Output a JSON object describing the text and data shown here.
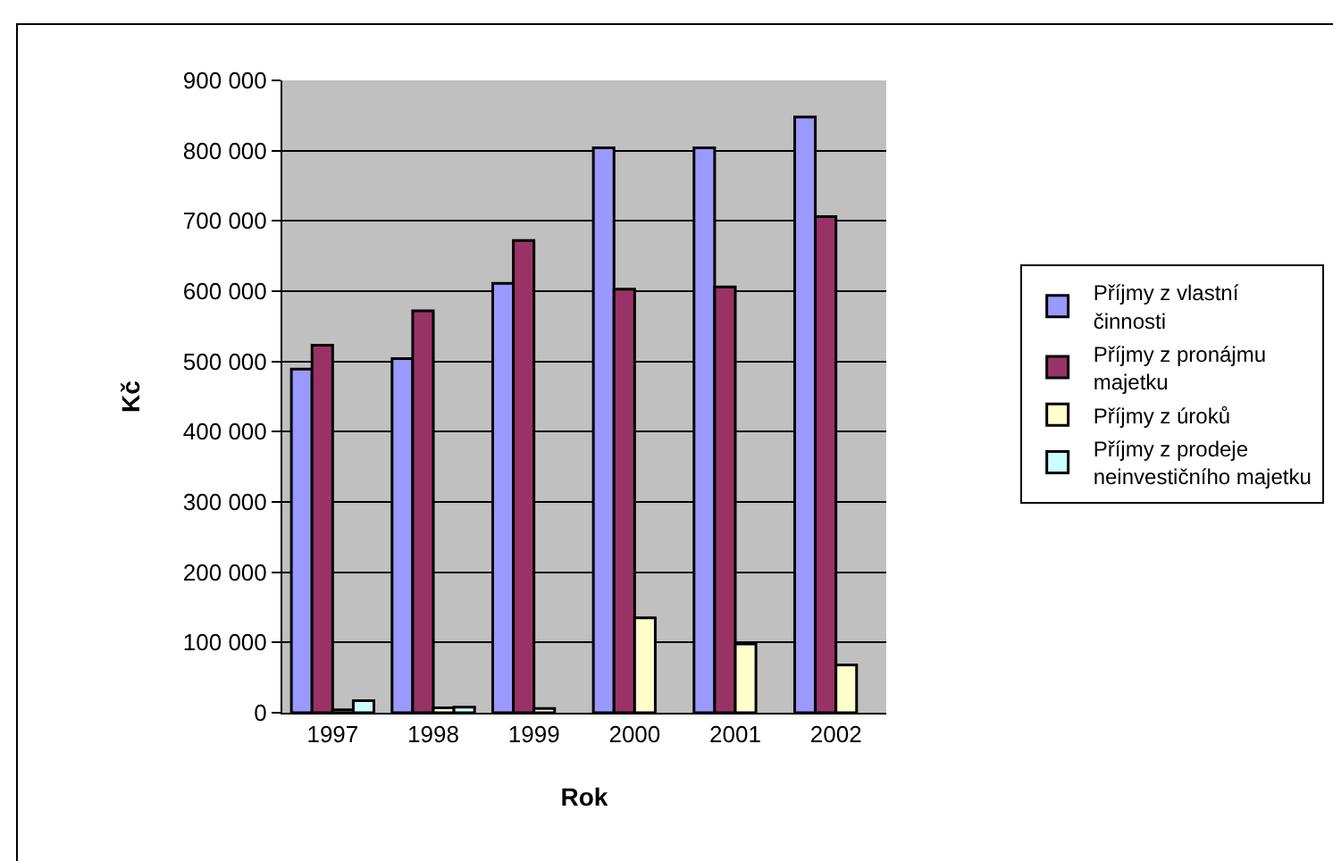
{
  "chart_data": {
    "type": "bar",
    "xlabel": "Rok",
    "ylabel": "Kč",
    "categories": [
      "1997",
      "1998",
      "1999",
      "2000",
      "2001",
      "2002"
    ],
    "series": [
      {
        "name": "Příjmy z vlastní činnosti",
        "color": "#9999ff",
        "values": [
          489000,
          504000,
          611000,
          804000,
          804000,
          848000
        ]
      },
      {
        "name": "Příjmy z pronájmu majetku",
        "color": "#993366",
        "values": [
          523000,
          572000,
          672000,
          603000,
          606000,
          706000
        ]
      },
      {
        "name": "Příjmy z úroků",
        "color": "#ffffcc",
        "values": [
          4000,
          7000,
          6000,
          135000,
          98000,
          68000
        ]
      },
      {
        "name": "Příjmy z prodeje neinvestičního majetku",
        "color": "#ccffff",
        "values": [
          17000,
          8000,
          null,
          null,
          null,
          null
        ]
      }
    ],
    "ylim": [
      0,
      900000
    ],
    "yticks": [
      {
        "value": 0,
        "label": "0"
      },
      {
        "value": 100000,
        "label": "100 000"
      },
      {
        "value": 200000,
        "label": "200 000"
      },
      {
        "value": 300000,
        "label": "300 000"
      },
      {
        "value": 400000,
        "label": "400 000"
      },
      {
        "value": 500000,
        "label": "500 000"
      },
      {
        "value": 600000,
        "label": "600 000"
      },
      {
        "value": 700000,
        "label": "700 000"
      },
      {
        "value": 800000,
        "label": "800 000"
      },
      {
        "value": 900000,
        "label": "900 000"
      }
    ],
    "grid": "y",
    "legend": "right"
  }
}
